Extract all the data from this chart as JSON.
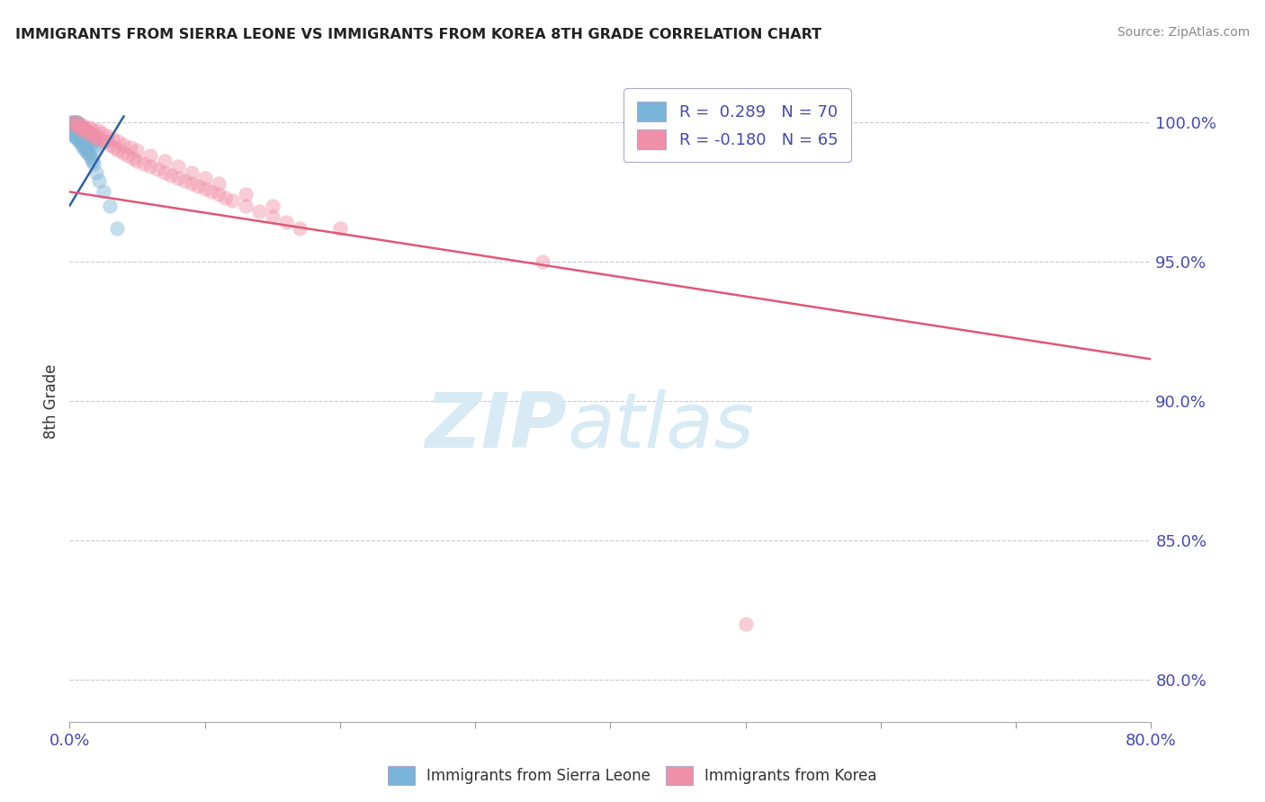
{
  "title": "IMMIGRANTS FROM SIERRA LEONE VS IMMIGRANTS FROM KOREA 8TH GRADE CORRELATION CHART",
  "source_text": "Source: ZipAtlas.com",
  "ylabel": "8th Grade",
  "right_yticks": [
    0.8,
    0.85,
    0.9,
    0.95,
    1.0
  ],
  "right_yticklabels": [
    "80.0%",
    "85.0%",
    "90.0%",
    "95.0%",
    "100.0%"
  ],
  "xlim": [
    0.0,
    0.8
  ],
  "ylim": [
    0.785,
    1.015
  ],
  "xticks": [
    0.0,
    0.1,
    0.2,
    0.3,
    0.4,
    0.5,
    0.6,
    0.7,
    0.8
  ],
  "xticklabels_show": [
    "0.0%",
    "",
    "",
    "",
    "",
    "",
    "",
    "",
    "80.0%"
  ],
  "legend_entries": [
    {
      "label": "R =  0.289   N = 70",
      "color": "#a8c8e8"
    },
    {
      "label": "R = -0.180   N = 65",
      "color": "#f4a0b8"
    }
  ],
  "blue_scatter_x": [
    0.001,
    0.002,
    0.002,
    0.003,
    0.003,
    0.003,
    0.004,
    0.004,
    0.004,
    0.005,
    0.005,
    0.005,
    0.006,
    0.006,
    0.006,
    0.007,
    0.007,
    0.007,
    0.008,
    0.008,
    0.008,
    0.009,
    0.009,
    0.01,
    0.01,
    0.01,
    0.011,
    0.011,
    0.012,
    0.012,
    0.013,
    0.013,
    0.014,
    0.015,
    0.015,
    0.016,
    0.017,
    0.018,
    0.019,
    0.02,
    0.001,
    0.002,
    0.003,
    0.004,
    0.005,
    0.006,
    0.007,
    0.008,
    0.002,
    0.003,
    0.004,
    0.005,
    0.006,
    0.007,
    0.008,
    0.009,
    0.01,
    0.011,
    0.012,
    0.013,
    0.014,
    0.015,
    0.016,
    0.017,
    0.018,
    0.02,
    0.022,
    0.025,
    0.03,
    0.035
  ],
  "blue_scatter_y": [
    0.999,
    0.999,
    0.998,
    0.999,
    0.998,
    0.997,
    0.999,
    0.998,
    0.997,
    0.999,
    0.998,
    0.997,
    0.999,
    0.998,
    0.997,
    0.998,
    0.997,
    0.996,
    0.998,
    0.997,
    0.996,
    0.997,
    0.996,
    0.998,
    0.997,
    0.996,
    0.997,
    0.996,
    0.997,
    0.996,
    0.996,
    0.995,
    0.995,
    0.996,
    0.995,
    0.994,
    0.993,
    0.993,
    0.992,
    0.991,
    1.0,
    1.0,
    1.0,
    1.0,
    1.0,
    1.0,
    0.999,
    0.999,
    0.996,
    0.995,
    0.995,
    0.994,
    0.994,
    0.993,
    0.993,
    0.992,
    0.991,
    0.991,
    0.99,
    0.989,
    0.989,
    0.988,
    0.987,
    0.986,
    0.985,
    0.982,
    0.979,
    0.975,
    0.97,
    0.962
  ],
  "pink_scatter_x": [
    0.003,
    0.005,
    0.007,
    0.008,
    0.01,
    0.012,
    0.013,
    0.015,
    0.017,
    0.018,
    0.02,
    0.022,
    0.025,
    0.027,
    0.03,
    0.033,
    0.036,
    0.04,
    0.043,
    0.047,
    0.05,
    0.055,
    0.06,
    0.065,
    0.07,
    0.075,
    0.08,
    0.085,
    0.09,
    0.095,
    0.1,
    0.105,
    0.11,
    0.115,
    0.12,
    0.13,
    0.14,
    0.15,
    0.16,
    0.17,
    0.003,
    0.006,
    0.009,
    0.012,
    0.015,
    0.018,
    0.021,
    0.024,
    0.028,
    0.032,
    0.036,
    0.04,
    0.045,
    0.05,
    0.06,
    0.07,
    0.08,
    0.09,
    0.1,
    0.11,
    0.13,
    0.15,
    0.2,
    0.35,
    0.5
  ],
  "pink_scatter_y": [
    0.999,
    0.999,
    0.998,
    0.998,
    0.997,
    0.997,
    0.996,
    0.996,
    0.995,
    0.995,
    0.994,
    0.994,
    0.993,
    0.993,
    0.992,
    0.991,
    0.99,
    0.989,
    0.988,
    0.987,
    0.986,
    0.985,
    0.984,
    0.983,
    0.982,
    0.981,
    0.98,
    0.979,
    0.978,
    0.977,
    0.976,
    0.975,
    0.974,
    0.973,
    0.972,
    0.97,
    0.968,
    0.966,
    0.964,
    0.962,
    1.0,
    1.0,
    0.999,
    0.998,
    0.998,
    0.997,
    0.997,
    0.996,
    0.995,
    0.994,
    0.993,
    0.992,
    0.991,
    0.99,
    0.988,
    0.986,
    0.984,
    0.982,
    0.98,
    0.978,
    0.974,
    0.97,
    0.962,
    0.95,
    0.82
  ],
  "blue_line_x": [
    0.0,
    0.04
  ],
  "blue_line_y": [
    0.97,
    1.002
  ],
  "pink_line_x": [
    0.0,
    0.8
  ],
  "pink_line_y": [
    0.975,
    0.915
  ],
  "blue_color": "#7ab4d8",
  "pink_color": "#f090a8",
  "blue_line_color": "#3060a0",
  "pink_line_color": "#e05878",
  "grid_color": "#c8c8d8",
  "background_color": "#ffffff",
  "watermark_zip": "ZIP",
  "watermark_atlas": "atlas",
  "watermark_color": "#d8eaf4"
}
